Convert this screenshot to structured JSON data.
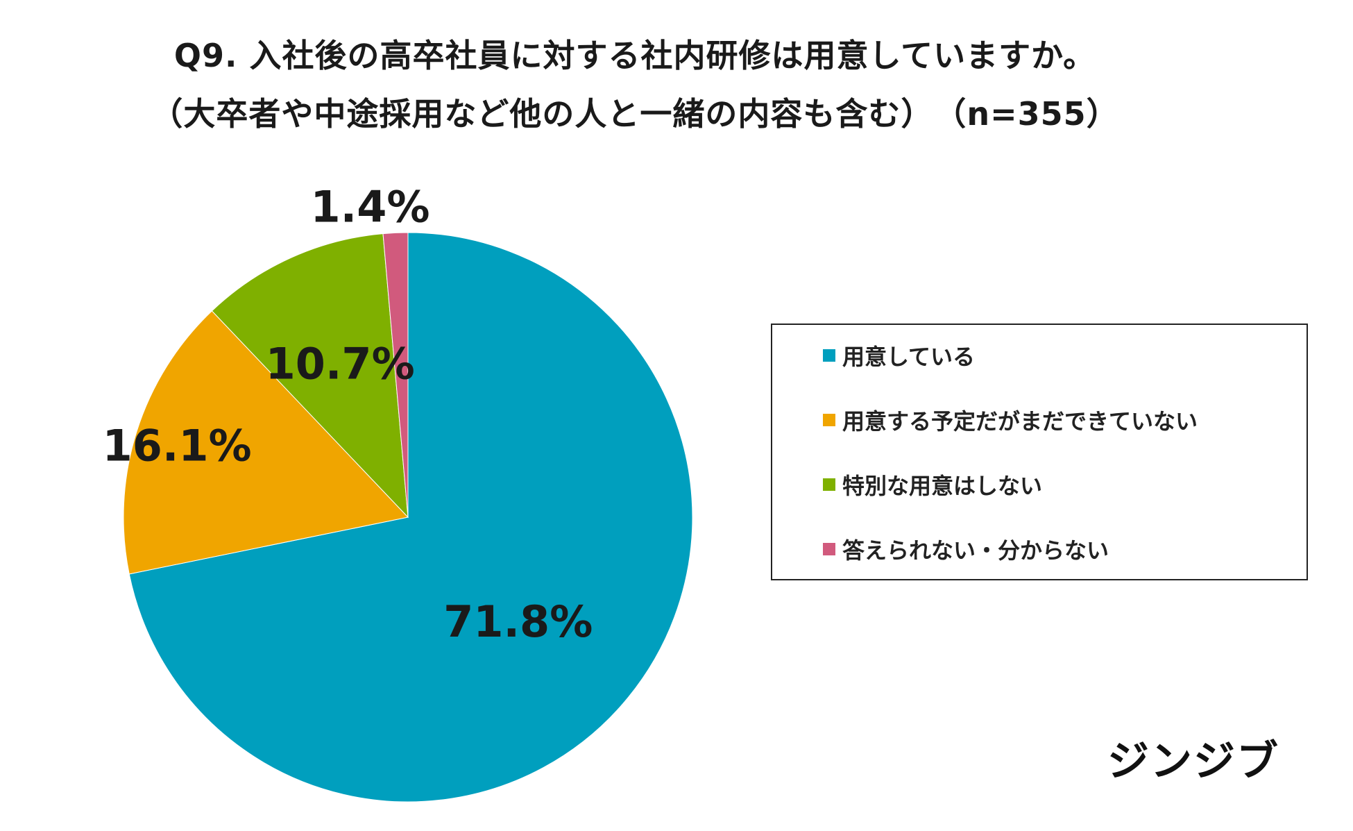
{
  "title": {
    "line1": "Q9. 入社後の高卒社員に対する社内研修は用意していますか。",
    "line2": "（大卒者や中途採用など他の人と一緒の内容も含む）　（n=355）"
  },
  "chart_data": {
    "type": "pie",
    "categories": [
      "用意している",
      "用意する予定だがまだできていない",
      "特別な用意はしない",
      "答えられない・分からない"
    ],
    "values": [
      71.8,
      16.1,
      10.7,
      1.4
    ],
    "value_labels": [
      "71.8%",
      "16.1%",
      "10.7%",
      "1.4%"
    ],
    "colors": [
      "#009FBE",
      "#F0A500",
      "#7FB000",
      "#D15A7D"
    ],
    "start": "12 o'clock",
    "direction": "clockwise",
    "legend_position": "right"
  },
  "legend": {
    "items": [
      {
        "label": "用意している",
        "color": "#009FBE"
      },
      {
        "label": "用意する予定だがまだできていない",
        "color": "#F0A500"
      },
      {
        "label": "特別な用意はしない",
        "color": "#7FB000"
      },
      {
        "label": "答えられない・分からない",
        "color": "#D15A7D"
      }
    ]
  },
  "logo": {
    "text": "ジンジブ"
  }
}
